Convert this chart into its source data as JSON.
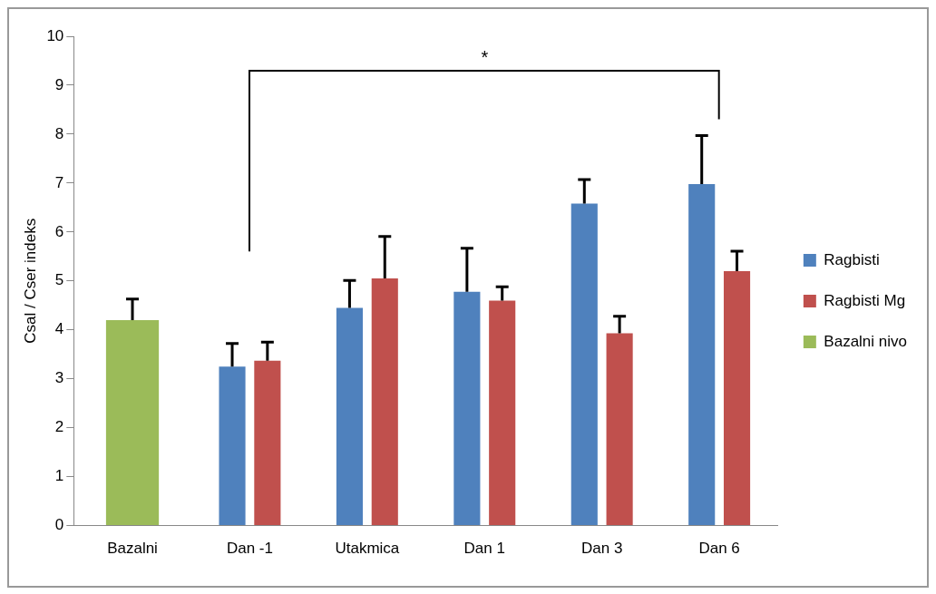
{
  "chart_data": {
    "type": "bar",
    "categories": [
      "Bazalni",
      "Dan -1",
      "Utakmica",
      "Dan 1",
      "Dan 3",
      "Dan 6"
    ],
    "series": [
      {
        "name": "Ragbisti",
        "color": "#4f81bd",
        "values": [
          null,
          3.25,
          4.45,
          4.78,
          6.58,
          6.98
        ],
        "errors": [
          null,
          0.47,
          0.56,
          0.89,
          0.49,
          0.99
        ]
      },
      {
        "name": "Ragbisti Mg",
        "color": "#c0504d",
        "values": [
          null,
          3.37,
          5.05,
          4.6,
          3.93,
          5.2
        ],
        "errors": [
          null,
          0.38,
          0.86,
          0.28,
          0.35,
          0.41
        ]
      },
      {
        "name": "Bazalni nivo",
        "color": "#9bbb59",
        "values": [
          4.2,
          null,
          null,
          null,
          null,
          null
        ],
        "errors": [
          0.43,
          null,
          null,
          null,
          null,
          null
        ]
      }
    ],
    "ylabel": "Csal / Cser indeks",
    "ylim": [
      0,
      10
    ],
    "yticks": [
      0,
      1,
      2,
      3,
      4,
      5,
      6,
      7,
      8,
      9,
      10
    ],
    "grid": false,
    "legend": "right",
    "annotations": [
      "*"
    ]
  }
}
